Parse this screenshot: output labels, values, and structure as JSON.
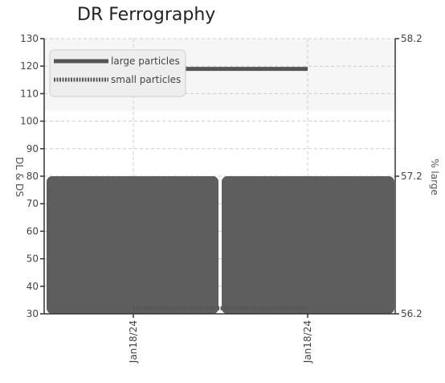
{
  "chart_data": {
    "type": "bar+line",
    "title": "DR Ferrography",
    "categories": [
      "Jan18/24",
      "Jan18/24"
    ],
    "y_left": {
      "label": "DL & DS",
      "ylim": [
        30,
        130
      ],
      "ticks": [
        30,
        40,
        50,
        60,
        70,
        80,
        90,
        100,
        110,
        120,
        130
      ]
    },
    "y_right": {
      "label": "% large",
      "ylim": [
        56.2,
        58.2
      ],
      "ticks": [
        56.2,
        57.2,
        58.2
      ]
    },
    "bars": {
      "axis": "right",
      "values": [
        57.2,
        57.2
      ],
      "color": "#5e5e5e"
    },
    "series": [
      {
        "name": "large particles",
        "axis": "left",
        "values": [
          119,
          119
        ],
        "color": "#555555",
        "style": "solid"
      },
      {
        "name": "small particles",
        "axis": "left",
        "values": [
          32,
          32
        ],
        "color": "#555555",
        "style": "dotted"
      }
    ],
    "grid": true,
    "legend": "top-left"
  }
}
